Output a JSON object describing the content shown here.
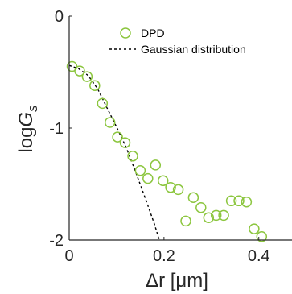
{
  "chart_data": {
    "type": "scatter",
    "xlabel": "Δr [μm]",
    "ylabel": "logG_s",
    "xlim": [
      0,
      0.47
    ],
    "ylim": [
      -2,
      0
    ],
    "x_ticks": [
      "0",
      "0.2",
      "0.4"
    ],
    "y_ticks": [
      "0",
      "-1",
      "-2"
    ],
    "x_tick_values": [
      0,
      0.2,
      0.4
    ],
    "y_tick_values": [
      0,
      -1,
      -2
    ],
    "grid": false,
    "legend_position": "top-right",
    "series": [
      {
        "name": "DPD",
        "kind": "scatter",
        "marker": "open-circle",
        "color": "#8cc63f",
        "points": [
          [
            0.006,
            -0.45
          ],
          [
            0.022,
            -0.49
          ],
          [
            0.038,
            -0.54
          ],
          [
            0.054,
            -0.62
          ],
          [
            0.07,
            -0.78
          ],
          [
            0.086,
            -0.95
          ],
          [
            0.102,
            -1.08
          ],
          [
            0.118,
            -1.13
          ],
          [
            0.134,
            -1.25
          ],
          [
            0.15,
            -1.38
          ],
          [
            0.166,
            -1.45
          ],
          [
            0.182,
            -1.33
          ],
          [
            0.198,
            -1.47
          ],
          [
            0.214,
            -1.53
          ],
          [
            0.23,
            -1.55
          ],
          [
            0.246,
            -1.83
          ],
          [
            0.262,
            -1.62
          ],
          [
            0.278,
            -1.71
          ],
          [
            0.294,
            -1.8
          ],
          [
            0.31,
            -1.78
          ],
          [
            0.326,
            -1.78
          ],
          [
            0.342,
            -1.65
          ],
          [
            0.358,
            -1.65
          ],
          [
            0.374,
            -1.66
          ],
          [
            0.39,
            -1.9
          ],
          [
            0.406,
            -1.97
          ]
        ]
      },
      {
        "name": "Gaussian distribution",
        "kind": "line",
        "style": "dashed",
        "color": "#000000",
        "points": [
          [
            0.0,
            -0.44
          ],
          [
            0.02,
            -0.47
          ],
          [
            0.04,
            -0.53
          ],
          [
            0.06,
            -0.65
          ],
          [
            0.08,
            -0.82
          ],
          [
            0.1,
            -0.99
          ],
          [
            0.12,
            -1.17
          ],
          [
            0.14,
            -1.39
          ],
          [
            0.16,
            -1.62
          ],
          [
            0.18,
            -1.86
          ],
          [
            0.19,
            -2.0
          ]
        ]
      }
    ]
  }
}
